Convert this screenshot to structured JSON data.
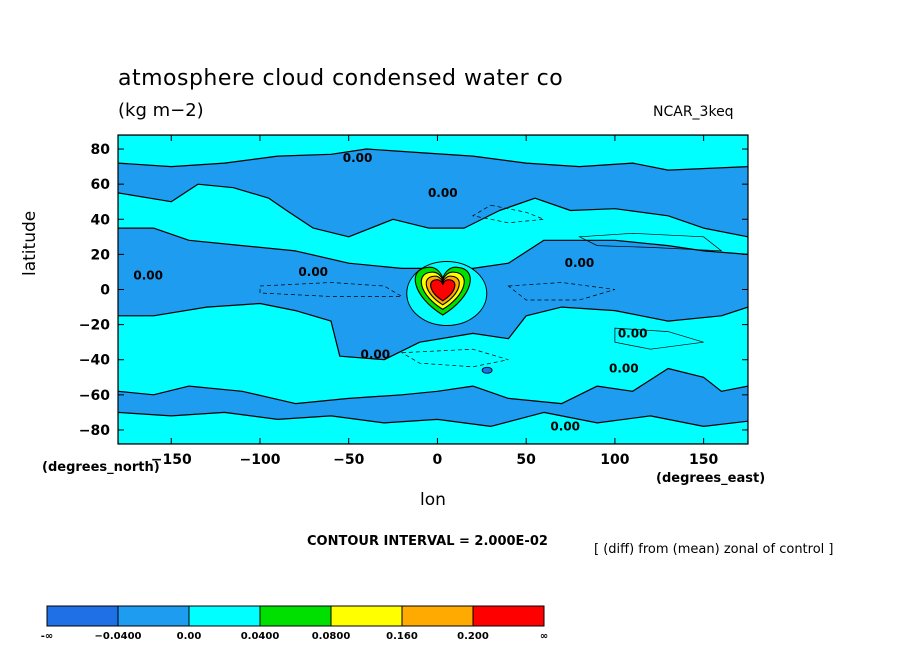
{
  "title": "atmosphere cloud condensed water co",
  "units": "(kg m−2)",
  "model": "NCAR_3keq",
  "ylabel": "latitude",
  "xlabel": "lon",
  "y_corner": "(degrees_north)",
  "x_corner": "(degrees_east)",
  "contour_interval": "CONTOUR INTERVAL = 2.000E-02",
  "note": "[ (diff) from (mean) zonal of control ]",
  "chart_data": {
    "type": "heatmap",
    "xlim": [
      -180,
      175
    ],
    "ylim": [
      -88,
      88
    ],
    "x_ticks": [
      -150,
      -100,
      -50,
      0,
      50,
      100,
      150
    ],
    "x_tick_labels": [
      "−150",
      "−100",
      "−50",
      "0",
      "50",
      "100",
      "150"
    ],
    "y_ticks": [
      80,
      60,
      40,
      20,
      0,
      -20,
      -40,
      -60,
      -80
    ],
    "y_tick_labels": [
      "80",
      "60",
      "40",
      "20",
      "0",
      "−20",
      "−40",
      "−60",
      "−80"
    ],
    "contour_labels": [
      {
        "text": "0.00",
        "lon": -45,
        "lat": 75
      },
      {
        "text": "0.00",
        "lon": 3,
        "lat": 55
      },
      {
        "text": "0.00",
        "lon": -70,
        "lat": 10
      },
      {
        "text": "0.00",
        "lon": -163,
        "lat": 8
      },
      {
        "text": "0.00",
        "lon": 80,
        "lat": 15
      },
      {
        "text": "0.00",
        "lon": 110,
        "lat": -25
      },
      {
        "text": "0.00",
        "lon": -35,
        "lat": -37
      },
      {
        "text": "0.00",
        "lon": 105,
        "lat": -45
      },
      {
        "text": "0.00",
        "lon": 72,
        "lat": -78
      }
    ],
    "colorbar": {
      "labels": [
        "-∞",
        "−0.0400",
        "0.00",
        "0.0400",
        "0.0800",
        "0.160",
        "0.200",
        "∞"
      ],
      "colors": [
        "#1f6fe6",
        "#1e9cf0",
        "#00ffff",
        "#00e000",
        "#ffff00",
        "#ffaa00",
        "#ff0000"
      ]
    },
    "field_colors": {
      "negative": "#1e9cf0",
      "zero_band": "#00ffff",
      "strong_negative": "#1f6fe6",
      "peak_levels": [
        "#00e000",
        "#ffff00",
        "#ffaa00",
        "#ff0000"
      ]
    },
    "positive_regions": [
      [
        [
          -180,
          88
        ],
        [
          175,
          88
        ],
        [
          175,
          70
        ],
        [
          130,
          68
        ],
        [
          110,
          72
        ],
        [
          80,
          70
        ],
        [
          50,
          72
        ],
        [
          20,
          76
        ],
        [
          -10,
          78
        ],
        [
          -40,
          80
        ],
        [
          -60,
          77
        ],
        [
          -90,
          76
        ],
        [
          -120,
          72
        ],
        [
          -150,
          70
        ],
        [
          -180,
          72
        ]
      ],
      [
        [
          -180,
          55
        ],
        [
          -150,
          50
        ],
        [
          -135,
          60
        ],
        [
          -115,
          58
        ],
        [
          -95,
          52
        ],
        [
          -85,
          45
        ],
        [
          -70,
          35
        ],
        [
          -50,
          30
        ],
        [
          -25,
          40
        ],
        [
          -5,
          35
        ],
        [
          15,
          35
        ],
        [
          35,
          45
        ],
        [
          55,
          52
        ],
        [
          75,
          45
        ],
        [
          100,
          46
        ],
        [
          130,
          42
        ],
        [
          150,
          35
        ],
        [
          175,
          30
        ],
        [
          175,
          20
        ],
        [
          150,
          22
        ],
        [
          130,
          25
        ],
        [
          100,
          28
        ],
        [
          60,
          28
        ],
        [
          40,
          15
        ],
        [
          20,
          12
        ],
        [
          0,
          12
        ],
        [
          -20,
          12
        ],
        [
          -50,
          15
        ],
        [
          -80,
          22
        ],
        [
          -110,
          25
        ],
        [
          -140,
          28
        ],
        [
          -160,
          35
        ],
        [
          -180,
          35
        ]
      ],
      [
        [
          -180,
          -15
        ],
        [
          -160,
          -15
        ],
        [
          -130,
          -10
        ],
        [
          -100,
          -8
        ],
        [
          -80,
          -12
        ],
        [
          -60,
          -18
        ],
        [
          -55,
          -38
        ],
        [
          -30,
          -40
        ],
        [
          -10,
          -30
        ],
        [
          20,
          -25
        ],
        [
          40,
          -28
        ],
        [
          50,
          -15
        ],
        [
          70,
          -10
        ],
        [
          100,
          -12
        ],
        [
          130,
          -18
        ],
        [
          160,
          -15
        ],
        [
          175,
          -10
        ],
        [
          175,
          -55
        ],
        [
          160,
          -58
        ],
        [
          150,
          -50
        ],
        [
          130,
          -45
        ],
        [
          110,
          -58
        ],
        [
          90,
          -55
        ],
        [
          70,
          -65
        ],
        [
          40,
          -62
        ],
        [
          20,
          -55
        ],
        [
          0,
          -58
        ],
        [
          -20,
          -60
        ],
        [
          -50,
          -62
        ],
        [
          -80,
          -65
        ],
        [
          -110,
          -58
        ],
        [
          -140,
          -55
        ],
        [
          -160,
          -60
        ],
        [
          -180,
          -58
        ]
      ],
      [
        [
          -180,
          -88
        ],
        [
          175,
          -88
        ],
        [
          175,
          -75
        ],
        [
          150,
          -78
        ],
        [
          120,
          -72
        ],
        [
          90,
          -76
        ],
        [
          60,
          -70
        ],
        [
          30,
          -78
        ],
        [
          0,
          -74
        ],
        [
          -30,
          -76
        ],
        [
          -60,
          -72
        ],
        [
          -90,
          -74
        ],
        [
          -120,
          -70
        ],
        [
          -150,
          -72
        ],
        [
          -180,
          -70
        ]
      ]
    ],
    "peak": {
      "lon": 3,
      "lat": 0
    }
  }
}
